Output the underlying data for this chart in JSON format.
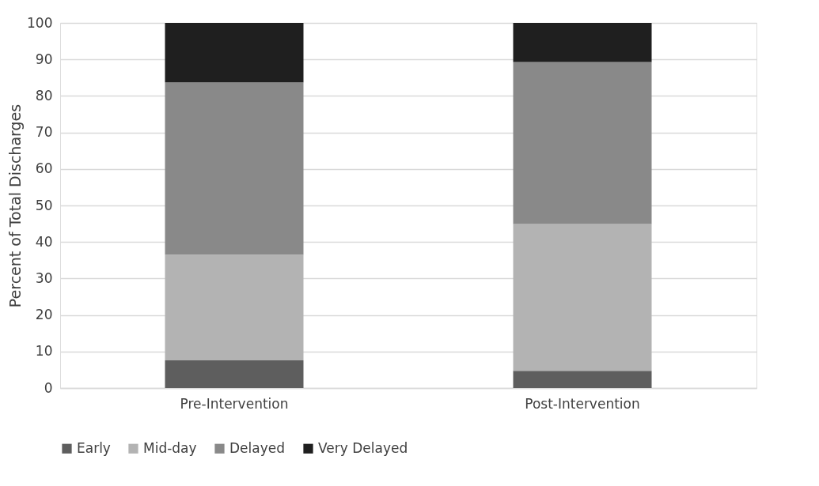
{
  "chart_data": {
    "type": "bar",
    "stacked": true,
    "ylabel": "Percent of Total Discharges",
    "categories": [
      "Pre-Intervention",
      "Post-Intervention"
    ],
    "series": [
      {
        "name": "Early",
        "color": "#5e5e5e",
        "values": [
          7.6,
          4.7
        ]
      },
      {
        "name": "Mid-day",
        "color": "#b3b3b3",
        "values": [
          28.9,
          40.2
        ]
      },
      {
        "name": "Delayed",
        "color": "#898989",
        "values": [
          47.2,
          44.4
        ]
      },
      {
        "name": "Very Delayed",
        "color": "#1f1f1f",
        "values": [
          16.3,
          10.7
        ]
      }
    ],
    "ylim": [
      0,
      100
    ],
    "yticks": [
      0,
      10,
      20,
      30,
      40,
      50,
      60,
      70,
      80,
      90,
      100
    ],
    "grid": "y",
    "legend": "bottom"
  }
}
